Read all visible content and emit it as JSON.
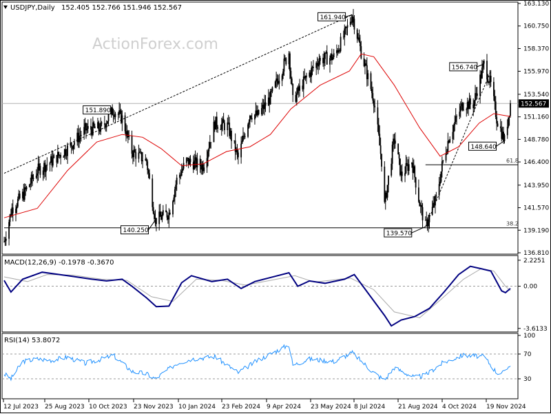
{
  "header": {
    "symbol": "USDJPY,Daily",
    "ohlc": "152.405 152.766 151.946 152.567",
    "watermark": "ActionForex.com",
    "last_price_label": "152.567"
  },
  "chart_data": [
    {
      "type": "candlestick",
      "symbol": "USDJPY",
      "timeframe": "Daily",
      "last": {
        "open": 152.405,
        "high": 152.766,
        "low": 151.946,
        "close": 152.567
      },
      "ylim": [
        136.81,
        163.13
      ],
      "y_ticks": [
        "163.130",
        "160.750",
        "158.370",
        "155.970",
        "153.540",
        "151.160",
        "148.780",
        "146.400",
        "143.950",
        "141.570",
        "139.190",
        "136.810"
      ],
      "x_ticks": [
        "12 Jul 2023",
        "25 Aug 2023",
        "10 Oct 2023",
        "23 Nov 2023",
        "10 Jan 2024",
        "23 Feb 2024",
        "9 Apr 2024",
        "23 May 2024",
        "8 Jul 2024",
        "21 Aug 2024",
        "4 Oct 2024",
        "19 Nov 2024"
      ],
      "price_path": [
        [
          "2023-07-12",
          138.0
        ],
        [
          "2023-07-20",
          141.5
        ],
        [
          "2023-08-01",
          143.0
        ],
        [
          "2023-08-15",
          145.5
        ],
        [
          "2023-08-30",
          146.5
        ],
        [
          "2023-09-15",
          147.8
        ],
        [
          "2023-10-03",
          149.8
        ],
        [
          "2023-10-20",
          150.0
        ],
        [
          "2023-11-01",
          151.89
        ],
        [
          "2023-11-10",
          151.0
        ],
        [
          "2023-11-20",
          147.5
        ],
        [
          "2023-12-05",
          146.5
        ],
        [
          "2023-12-14",
          140.25
        ],
        [
          "2023-12-28",
          141.0
        ],
        [
          "2024-01-05",
          144.5
        ],
        [
          "2024-01-15",
          146.5
        ],
        [
          "2024-02-01",
          146.0
        ],
        [
          "2024-02-13",
          150.5
        ],
        [
          "2024-02-26",
          150.2
        ],
        [
          "2024-03-08",
          146.8
        ],
        [
          "2024-03-20",
          151.5
        ],
        [
          "2024-03-28",
          151.3
        ],
        [
          "2024-04-10",
          153.2
        ],
        [
          "2024-04-29",
          158.0
        ],
        [
          "2024-05-03",
          152.8
        ],
        [
          "2024-05-15",
          155.0
        ],
        [
          "2024-05-30",
          157.2
        ],
        [
          "2024-06-14",
          157.5
        ],
        [
          "2024-06-25",
          159.8
        ],
        [
          "2024-07-03",
          161.94
        ],
        [
          "2024-07-12",
          158.0
        ],
        [
          "2024-07-25",
          153.0
        ],
        [
          "2024-08-02",
          146.5
        ],
        [
          "2024-08-05",
          141.8
        ],
        [
          "2024-08-15",
          149.0
        ],
        [
          "2024-08-22",
          145.0
        ],
        [
          "2024-09-02",
          146.5
        ],
        [
          "2024-09-10",
          142.0
        ],
        [
          "2024-09-16",
          139.57
        ],
        [
          "2024-09-27",
          142.5
        ],
        [
          "2024-10-03",
          146.0
        ],
        [
          "2024-10-10",
          149.0
        ],
        [
          "2024-10-24",
          152.5
        ],
        [
          "2024-11-04",
          152.5
        ],
        [
          "2024-11-15",
          156.74
        ],
        [
          "2024-11-22",
          154.5
        ],
        [
          "2024-11-28",
          151.0
        ],
        [
          "2024-12-03",
          149.5
        ],
        [
          "2024-12-06",
          148.64
        ],
        [
          "2024-12-12",
          152.567
        ]
      ],
      "moving_average": [
        [
          "2023-07-12",
          140.5
        ],
        [
          "2023-08-15",
          141.5
        ],
        [
          "2023-09-15",
          145.5
        ],
        [
          "2023-10-15",
          148.5
        ],
        [
          "2023-11-10",
          149.3
        ],
        [
          "2023-12-01",
          149.0
        ],
        [
          "2023-12-20",
          147.8
        ],
        [
          "2024-01-10",
          146.0
        ],
        [
          "2024-02-01",
          146.2
        ],
        [
          "2024-02-25",
          147.5
        ],
        [
          "2024-03-20",
          148.0
        ],
        [
          "2024-04-10",
          149.3
        ],
        [
          "2024-05-01",
          152.0
        ],
        [
          "2024-05-31",
          154.5
        ],
        [
          "2024-06-30",
          156.0
        ],
        [
          "2024-07-12",
          157.8
        ],
        [
          "2024-07-25",
          157.5
        ],
        [
          "2024-08-15",
          154.5
        ],
        [
          "2024-09-10",
          150.0
        ],
        [
          "2024-10-01",
          147.0
        ],
        [
          "2024-10-20",
          148.0
        ],
        [
          "2024-11-10",
          150.5
        ],
        [
          "2024-11-25",
          151.5
        ],
        [
          "2024-12-12",
          151.2
        ]
      ],
      "annotations": [
        {
          "label": "151.890",
          "date": "2023-11-01",
          "price": 151.89
        },
        {
          "label": "140.250",
          "date": "2023-12-14",
          "price": 140.25
        },
        {
          "label": "161.940",
          "date": "2024-07-03",
          "price": 161.94
        },
        {
          "label": "139.570",
          "date": "2024-09-16",
          "price": 139.57
        },
        {
          "label": "156.740",
          "date": "2024-11-15",
          "price": 156.74
        },
        {
          "label": "148.640",
          "date": "2024-12-06",
          "price": 148.64
        }
      ],
      "fib_levels": [
        {
          "label": "61.8",
          "price": 146.1,
          "from_date": "2024-09-16"
        },
        {
          "label": "38.2",
          "price": 139.45,
          "from_date": "2023-07-12"
        }
      ],
      "trendlines": [
        {
          "from": [
            "2023-07-12",
            145.2
          ],
          "to": [
            "2024-07-03",
            161.94
          ]
        },
        {
          "from": [
            "2024-09-16",
            139.57
          ],
          "to": [
            "2024-11-22",
            156.0
          ]
        }
      ]
    },
    {
      "type": "line",
      "title": "MACD(12,26,9) -0.1978 -0.3670",
      "ylim": [
        -3.8,
        2.45
      ],
      "y_ticks": [
        "2.2251",
        "0.00",
        "-3.6133"
      ],
      "macd": [
        [
          "2023-07-12",
          0.5
        ],
        [
          "2023-07-19",
          -0.5
        ],
        [
          "2023-07-31",
          0.6
        ],
        [
          "2023-08-20",
          1.2
        ],
        [
          "2023-09-15",
          0.9
        ],
        [
          "2023-10-10",
          0.6
        ],
        [
          "2023-10-25",
          0.45
        ],
        [
          "2023-11-10",
          0.6
        ],
        [
          "2023-11-20",
          0.0
        ],
        [
          "2023-12-05",
          -1.0
        ],
        [
          "2023-12-15",
          -1.75
        ],
        [
          "2023-12-28",
          -1.7
        ],
        [
          "2024-01-10",
          0.3
        ],
        [
          "2024-01-20",
          0.9
        ],
        [
          "2024-02-10",
          0.4
        ],
        [
          "2024-02-26",
          0.6
        ],
        [
          "2024-03-11",
          -0.2
        ],
        [
          "2024-03-25",
          0.4
        ],
        [
          "2024-04-08",
          0.7
        ],
        [
          "2024-04-29",
          1.15
        ],
        [
          "2024-05-08",
          0.0
        ],
        [
          "2024-05-20",
          0.45
        ],
        [
          "2024-06-05",
          0.25
        ],
        [
          "2024-06-25",
          0.6
        ],
        [
          "2024-07-05",
          1.0
        ],
        [
          "2024-07-20",
          -0.7
        ],
        [
          "2024-08-05",
          -2.5
        ],
        [
          "2024-08-12",
          -3.4
        ],
        [
          "2024-08-22",
          -2.9
        ],
        [
          "2024-09-05",
          -2.6
        ],
        [
          "2024-09-20",
          -1.9
        ],
        [
          "2024-10-05",
          -0.5
        ],
        [
          "2024-10-20",
          1.0
        ],
        [
          "2024-11-01",
          1.7
        ],
        [
          "2024-11-12",
          1.5
        ],
        [
          "2024-11-22",
          1.3
        ],
        [
          "2024-12-03",
          -0.4
        ],
        [
          "2024-12-07",
          -0.55
        ],
        [
          "2024-12-12",
          -0.2
        ]
      ],
      "signal": [
        [
          "2023-07-12",
          0.8
        ],
        [
          "2023-08-05",
          0.4
        ],
        [
          "2023-08-25",
          1.0
        ],
        [
          "2023-09-20",
          0.95
        ],
        [
          "2023-10-20",
          0.6
        ],
        [
          "2023-11-15",
          0.5
        ],
        [
          "2023-12-10",
          -0.9
        ],
        [
          "2024-01-01",
          -1.3
        ],
        [
          "2024-01-25",
          0.6
        ],
        [
          "2024-02-20",
          0.5
        ],
        [
          "2024-03-15",
          0.1
        ],
        [
          "2024-04-10",
          0.5
        ],
        [
          "2024-05-05",
          0.9
        ],
        [
          "2024-05-25",
          0.35
        ],
        [
          "2024-07-01",
          0.7
        ],
        [
          "2024-07-25",
          -0.3
        ],
        [
          "2024-08-15",
          -2.2
        ],
        [
          "2024-09-10",
          -2.7
        ],
        [
          "2024-10-01",
          -1.2
        ],
        [
          "2024-10-25",
          0.6
        ],
        [
          "2024-11-12",
          1.5
        ],
        [
          "2024-11-25",
          1.3
        ],
        [
          "2024-12-07",
          0.0
        ],
        [
          "2024-12-12",
          -0.37
        ]
      ]
    },
    {
      "type": "line",
      "title": "RSI(14) 53.8072",
      "ylim": [
        0,
        100
      ],
      "y_ticks": [
        "100",
        "70",
        "30",
        "0"
      ],
      "rsi": [
        [
          "2023-07-12",
          38
        ],
        [
          "2023-07-19",
          30
        ],
        [
          "2023-07-31",
          58
        ],
        [
          "2023-08-15",
          62
        ],
        [
          "2023-08-30",
          60
        ],
        [
          "2023-09-15",
          65
        ],
        [
          "2023-10-03",
          55
        ],
        [
          "2023-10-20",
          62
        ],
        [
          "2023-11-01",
          68
        ],
        [
          "2023-11-20",
          42
        ],
        [
          "2023-12-05",
          38
        ],
        [
          "2023-12-14",
          30
        ],
        [
          "2024-01-05",
          55
        ],
        [
          "2024-01-20",
          62
        ],
        [
          "2024-02-13",
          66
        ],
        [
          "2024-03-08",
          40
        ],
        [
          "2024-03-28",
          60
        ],
        [
          "2024-04-10",
          70
        ],
        [
          "2024-04-29",
          85
        ],
        [
          "2024-05-03",
          52
        ],
        [
          "2024-05-20",
          62
        ],
        [
          "2024-06-14",
          58
        ],
        [
          "2024-07-03",
          72
        ],
        [
          "2024-07-25",
          40
        ],
        [
          "2024-08-05",
          28
        ],
        [
          "2024-08-15",
          48
        ],
        [
          "2024-09-05",
          32
        ],
        [
          "2024-09-16",
          36
        ],
        [
          "2024-10-03",
          55
        ],
        [
          "2024-10-24",
          68
        ],
        [
          "2024-11-15",
          66
        ],
        [
          "2024-11-28",
          40
        ],
        [
          "2024-12-06",
          40
        ],
        [
          "2024-12-12",
          54
        ]
      ]
    }
  ]
}
